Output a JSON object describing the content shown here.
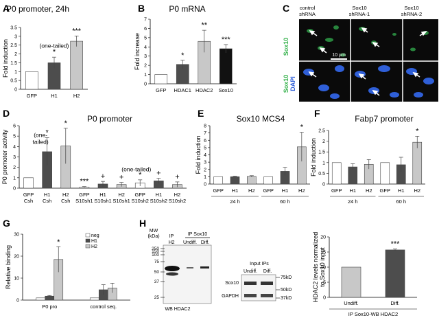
{
  "figure": {
    "colors": {
      "white_bar": "#ffffff",
      "dark_bar": "#4d4d4d",
      "light_bar": "#c8c8c8",
      "black_bar": "#111111",
      "micro_bg": "#0a0a0a",
      "nuclei": "#2f5fd8",
      "gfp": "#37b24d"
    }
  },
  "panels": {
    "A": {
      "letter": "A"
    },
    "B": {
      "letter": "B"
    },
    "C": {
      "letter": "C",
      "columns": [
        "control\nshRNA",
        "Sox10\nshRNA-1",
        "Sox10\nshRNA-2"
      ],
      "row1_label": "Sox10",
      "row2_label_a": "Sox10",
      "row2_label_b": "DAPI",
      "scalebar": "10 µm"
    },
    "D": {
      "letter": "D"
    },
    "E": {
      "letter": "E"
    },
    "F": {
      "letter": "F"
    },
    "G": {
      "letter": "G"
    },
    "H": {
      "letter": "H",
      "blot1": {
        "mw_header": "MW\n(kDa)",
        "ip_label": "IP",
        "ip_sox10": "IP Sox10",
        "lanes": [
          "H2",
          "Undiff.",
          "Diff."
        ],
        "markers": [
          "250",
          "150",
          "100",
          "75",
          "50",
          "37",
          "25"
        ],
        "footer": "WB HDAC2"
      },
      "blot2": {
        "title": "Input IPs",
        "lanes": [
          "Undiff.",
          "Diff."
        ],
        "rows": [
          "Sox10",
          "GAPDH"
        ],
        "markers": [
          "75kD",
          "50kD",
          "37kD"
        ]
      }
    }
  },
  "chart_data": [
    {
      "panel": "A",
      "type": "bar",
      "title": "P0 promoter, 24h",
      "ylabel": "Fold induction",
      "xlabel": "",
      "ylim": [
        0,
        3.5
      ],
      "yticks": [
        0,
        0.5,
        1,
        1.5,
        2,
        2.5,
        3,
        3.5
      ],
      "categories": [
        "GFP",
        "H1",
        "H2"
      ],
      "values": [
        1.0,
        1.5,
        2.72
      ],
      "errors": [
        0,
        0.32,
        0.3
      ],
      "colors": [
        "#ffffff",
        "#4d4d4d",
        "#c8c8c8"
      ],
      "sig": [
        "",
        "*",
        "***"
      ],
      "annotation": "(one-tailed)"
    },
    {
      "panel": "B",
      "type": "bar",
      "title": "P0 mRNA",
      "ylabel": "Fold increase",
      "xlabel": "",
      "ylim": [
        0,
        7
      ],
      "yticks": [
        0,
        1,
        2,
        3,
        4,
        5,
        6,
        7
      ],
      "categories": [
        "GFP",
        "HDAC1",
        "HDAC2",
        "Sox10"
      ],
      "values": [
        1.0,
        2.1,
        4.6,
        3.8
      ],
      "errors": [
        0,
        0.45,
        1.2,
        0.45
      ],
      "colors": [
        "#ffffff",
        "#4d4d4d",
        "#c8c8c8",
        "#111111"
      ],
      "sig": [
        "",
        "*",
        "**",
        "***"
      ]
    },
    {
      "panel": "D",
      "type": "bar",
      "title": "P0 promoter",
      "ylabel": "P0 promoter activity",
      "xlabel": "",
      "ylim": [
        0,
        6
      ],
      "yticks": [
        0,
        1,
        2,
        3,
        4,
        5,
        6
      ],
      "categories": [
        "GFP\nCsh",
        "H1\nCsh",
        "H2\nCsh",
        "GFP\nS10sh1",
        "H1\nS10sh1",
        "H2\nS10sh1",
        "GFP\nS10sh2",
        "H1\nS10sh2",
        "H2\nS10sh2"
      ],
      "values": [
        1.0,
        3.5,
        4.05,
        0.1,
        0.4,
        0.35,
        0.5,
        0.7,
        0.35
      ],
      "errors": [
        0,
        1.35,
        1.7,
        0.05,
        0.25,
        0.2,
        0.3,
        0.25,
        0.25
      ],
      "colors": [
        "#ffffff",
        "#4d4d4d",
        "#c8c8c8",
        "#ffffff",
        "#4d4d4d",
        "#c8c8c8",
        "#ffffff",
        "#4d4d4d",
        "#c8c8c8"
      ],
      "sig": [
        "",
        "*",
        "*",
        "***",
        "+",
        "+",
        "*",
        "+",
        "+"
      ],
      "annotations": [
        "(one-\ntailed)",
        "(one-tailed)"
      ]
    },
    {
      "panel": "E",
      "type": "bar",
      "title": "Sox10 MCS4",
      "ylabel": "Fold induction",
      "xlabel": "",
      "ylim": [
        0,
        8
      ],
      "yticks": [
        0,
        1,
        2,
        3,
        4,
        5,
        6,
        7,
        8
      ],
      "categories": [
        "GFP",
        "H1",
        "H2",
        "GFP",
        "H1",
        "H2"
      ],
      "groups": [
        "24 h",
        "60 h"
      ],
      "values": [
        1.0,
        1.0,
        1.05,
        1.0,
        1.75,
        5.1
      ],
      "errors": [
        0,
        0.08,
        0.1,
        0,
        0.55,
        2.0
      ],
      "colors": [
        "#ffffff",
        "#4d4d4d",
        "#c8c8c8",
        "#ffffff",
        "#4d4d4d",
        "#c8c8c8"
      ],
      "sig": [
        "",
        "",
        "",
        "",
        "",
        "*"
      ]
    },
    {
      "panel": "F",
      "type": "bar",
      "title": "Fabp7 promoter",
      "ylabel": "Fold induction",
      "xlabel": "",
      "ylim": [
        0,
        2.5
      ],
      "yticks": [
        0,
        0.5,
        1,
        1.5,
        2,
        2.5
      ],
      "categories": [
        "GFP",
        "H1",
        "H2",
        "GFP",
        "H1",
        "H2"
      ],
      "groups": [
        "24 h",
        "60 h"
      ],
      "values": [
        1.0,
        0.8,
        0.92,
        1.0,
        0.9,
        1.95
      ],
      "errors": [
        0,
        0.15,
        0.22,
        0,
        0.35,
        0.28
      ],
      "colors": [
        "#ffffff",
        "#4d4d4d",
        "#c8c8c8",
        "#ffffff",
        "#4d4d4d",
        "#c8c8c8"
      ],
      "sig": [
        "",
        "",
        "",
        "",
        "",
        "*"
      ]
    },
    {
      "panel": "G",
      "type": "bar",
      "title": "",
      "ylabel": "Relative binding",
      "xlabel": "",
      "ylim": [
        0,
        30
      ],
      "yticks": [
        0,
        10,
        20,
        30
      ],
      "categories": [
        "P0 pro",
        "control seq."
      ],
      "series": [
        {
          "name": "neg",
          "values": [
            1.0,
            1.0
          ],
          "errors": [
            0,
            0
          ],
          "color": "#ffffff"
        },
        {
          "name": "H1",
          "values": [
            1.8,
            4.7
          ],
          "errors": [
            0.3,
            2.3
          ],
          "color": "#4d4d4d"
        },
        {
          "name": "H2",
          "values": [
            18.5,
            5.5
          ],
          "errors": [
            5.8,
            2.2
          ],
          "color": "#c8c8c8"
        }
      ],
      "sig": [
        "*",
        ""
      ],
      "legend": "top-left"
    },
    {
      "panel": "H",
      "type": "bar",
      "title": "",
      "ylabel": "HDAC2 levels normalized\nto Sox10 input",
      "xlabel": "IP Sox10-WB HDAC2",
      "ylim": [
        0,
        20
      ],
      "yticks": [
        0,
        5,
        10,
        15,
        20
      ],
      "categories": [
        "Undiff.",
        "Diff."
      ],
      "values": [
        10.0,
        15.7
      ],
      "errors": [
        0,
        0.3
      ],
      "colors": [
        "#c8c8c8",
        "#4d4d4d"
      ],
      "sig": [
        "",
        "***"
      ]
    }
  ]
}
